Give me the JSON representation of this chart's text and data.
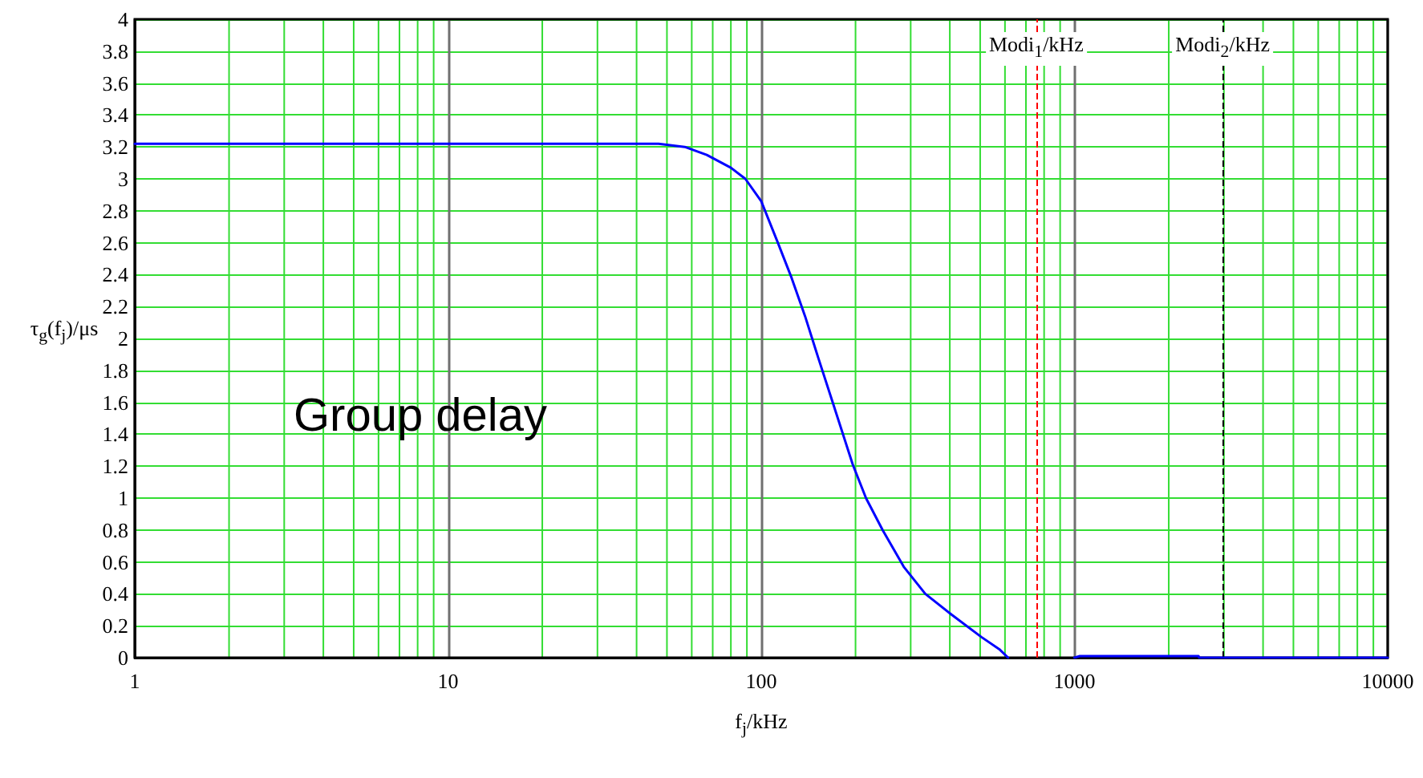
{
  "chart_data": {
    "type": "line",
    "xlabel": "f$_{j}$/kHz",
    "ylabel": "τ$_{g}$(f$_{j}$)/μs",
    "x": [
      1,
      47,
      57,
      67,
      80,
      89,
      100,
      113,
      125,
      138,
      152,
      171,
      196,
      216,
      244,
      285,
      334,
      405,
      504,
      578,
      614,
      800,
      1000,
      1040,
      2490,
      2500,
      10000
    ],
    "series": [
      {
        "color": "#0000ff",
        "values": [
          3.22,
          3.22,
          3.2,
          3.15,
          3.07,
          3.0,
          2.86,
          2.6,
          2.38,
          2.14,
          1.88,
          1.57,
          1.21,
          1.0,
          0.8,
          0.57,
          0.4,
          0.27,
          0.13,
          0.05,
          0,
          null,
          0,
          0.01,
          0.01,
          0,
          0
        ]
      }
    ],
    "log": "x",
    "xlim": [
      1,
      10000
    ],
    "xticks": [
      1,
      10,
      100,
      1000,
      10000
    ],
    "ylim": [
      0,
      4
    ],
    "yticks": [
      0,
      0.2,
      0.4,
      0.6,
      0.8,
      1,
      1.2,
      1.4,
      1.6,
      1.8,
      2,
      2.2,
      2.4,
      2.6,
      2.8,
      3,
      3.2,
      3.4,
      3.6,
      3.8,
      4
    ],
    "grid": true,
    "marker": "none",
    "line_style": "solid",
    "ref_lines": [
      {
        "axis": "x",
        "value": 755,
        "label": "Modi$_{1}$/kHz",
        "color": "#ff0000",
        "line_style": "dashed"
      },
      {
        "axis": "x",
        "value": 2970,
        "label": "Modi$_{2}$/kHz",
        "color": "#000000",
        "line_style": "dashed"
      }
    ],
    "annotations": [
      "Group delay"
    ]
  }
}
